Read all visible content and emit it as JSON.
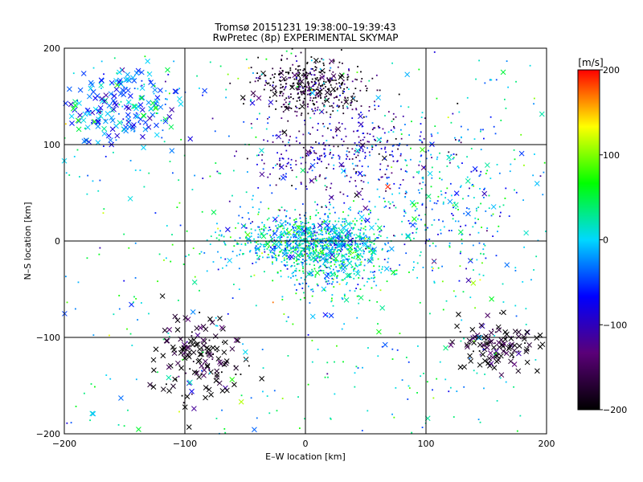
{
  "chart_data": {
    "type": "scatter",
    "title_line1": "Tromsø 20151231 19:38:00–19:39:43",
    "title_line2": "RwPretec (8p) EXPERIMENTAL SKYMAP",
    "xlabel": "E–W location [km]",
    "ylabel": "N–S location [km]",
    "xlim": [
      -200,
      200
    ],
    "ylim": [
      -200,
      200
    ],
    "xticks": [
      -200,
      -100,
      0,
      100,
      200
    ],
    "yticks": [
      -200,
      -100,
      0,
      100,
      200
    ],
    "xtick_labels": [
      "−200",
      "−100",
      "0",
      "100",
      "200"
    ],
    "ytick_labels": [
      "−200",
      "−100",
      "0",
      "100",
      "200"
    ],
    "grid": true,
    "markers": [
      "dot",
      "x"
    ],
    "colorbar": {
      "label": "[m/s]",
      "range": [
        -200,
        200
      ],
      "ticks": [
        200,
        100,
        0,
        -100,
        -200
      ],
      "tick_labels": [
        "200",
        "100",
        "0",
        "−100",
        "−200"
      ],
      "colors": [
        "#000000",
        "#5a0078",
        "#0000ff",
        "#00d8ff",
        "#00ff00",
        "#ffff00",
        "#ff0000"
      ]
    },
    "clusters": [
      {
        "region": "center",
        "x": 0,
        "y": 0,
        "spread": [
          60,
          25
        ],
        "value": 0,
        "count": 900,
        "marker": "dot"
      },
      {
        "region": "center-east",
        "x": 25,
        "y": -20,
        "spread": [
          45,
          40
        ],
        "value": 10,
        "count": 400,
        "marker": "dot"
      },
      {
        "region": "north",
        "x": 5,
        "y": 160,
        "spread": [
          40,
          25
        ],
        "value": -180,
        "count": 450,
        "marker": "dot"
      },
      {
        "region": "north-central",
        "x": 30,
        "y": 90,
        "spread": [
          70,
          45
        ],
        "value": -110,
        "count": 380,
        "marker": "dot"
      },
      {
        "region": "northwest",
        "x": -150,
        "y": 140,
        "spread": [
          45,
          35
        ],
        "value": -30,
        "count": 220,
        "marker": "x"
      },
      {
        "region": "southwest",
        "x": -90,
        "y": -120,
        "spread": [
          35,
          40
        ],
        "value": -200,
        "count": 150,
        "marker": "x"
      },
      {
        "region": "southeast",
        "x": 160,
        "y": -110,
        "spread": [
          30,
          25
        ],
        "value": -190,
        "count": 120,
        "marker": "x"
      },
      {
        "region": "east",
        "x": 120,
        "y": 40,
        "spread": [
          50,
          70
        ],
        "value": -20,
        "count": 250,
        "marker": "dot"
      },
      {
        "region": "scattered",
        "x": 0,
        "y": 0,
        "spread": [
          200,
          200
        ],
        "value": 20,
        "count": 500,
        "marker": "dot"
      }
    ]
  }
}
